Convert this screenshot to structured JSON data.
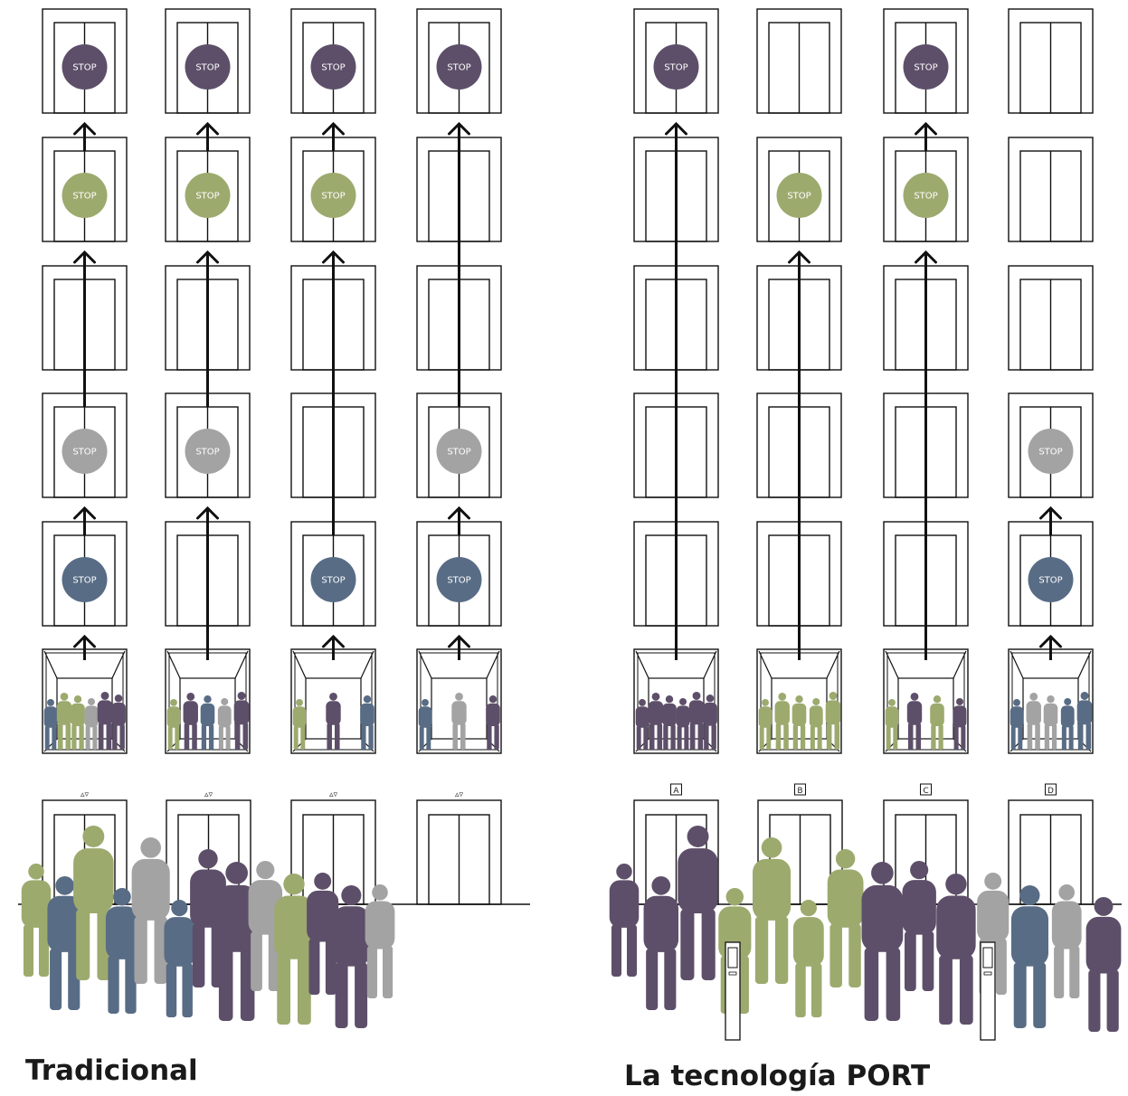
{
  "stop_label": "STOP",
  "colors": {
    "purple": "#5d4f69",
    "green": "#9caa6e",
    "gray": "#a3a3a3",
    "blue": "#586c85",
    "line": "#111111"
  },
  "panels": [
    {
      "caption": "Tradicional",
      "hall_indicator": "▵▿",
      "shafts": [
        {
          "car_crowd": [
            "blue",
            "green",
            "green",
            "gray",
            "purple",
            "purple"
          ],
          "stops": [
            null,
            "blue",
            "gray",
            null,
            "green",
            "purple"
          ],
          "hall_label": "▵▿"
        },
        {
          "car_crowd": [
            "green",
            "purple",
            "blue",
            "gray",
            "purple"
          ],
          "stops": [
            null,
            null,
            "gray",
            null,
            "green",
            "purple"
          ],
          "hall_label": "▵▿"
        },
        {
          "car_crowd": [
            "green",
            "purple",
            "blue"
          ],
          "stops": [
            null,
            "blue",
            null,
            null,
            "green",
            "purple"
          ],
          "hall_label": "▵▿"
        },
        {
          "car_crowd": [
            "blue",
            "gray",
            "purple"
          ],
          "stops": [
            null,
            "blue",
            "gray",
            null,
            null,
            "purple"
          ],
          "hall_label": "▵▿"
        }
      ]
    },
    {
      "caption": "La tecnología PORT",
      "shafts": [
        {
          "car_crowd": [
            "purple",
            "purple",
            "purple",
            "purple",
            "purple",
            "purple"
          ],
          "stops": [
            null,
            null,
            null,
            null,
            null,
            "purple"
          ],
          "hall_label": "A"
        },
        {
          "car_crowd": [
            "green",
            "green",
            "green",
            "green",
            "green"
          ],
          "stops": [
            null,
            null,
            null,
            null,
            "green",
            null
          ],
          "hall_label": "B"
        },
        {
          "car_crowd": [
            "green",
            "purple",
            "green",
            "purple"
          ],
          "stops": [
            null,
            null,
            null,
            null,
            "green",
            "purple"
          ],
          "hall_label": "C"
        },
        {
          "car_crowd": [
            "blue",
            "gray",
            "gray",
            "blue",
            "blue"
          ],
          "stops": [
            null,
            "blue",
            "gray",
            null,
            null,
            null
          ],
          "hall_label": "D"
        }
      ]
    }
  ],
  "lobby_crowds": [
    {
      "people": [
        "green",
        "blue",
        "green",
        "blue",
        "gray",
        "blue",
        "purple",
        "purple",
        "gray",
        "green",
        "purple",
        "purple",
        "gray"
      ]
    },
    {
      "people": [
        "purple",
        "purple",
        "purple",
        "green",
        "green",
        "green",
        "green",
        "purple",
        "purple",
        "purple",
        "gray",
        "blue",
        "gray",
        "purple"
      ]
    }
  ]
}
